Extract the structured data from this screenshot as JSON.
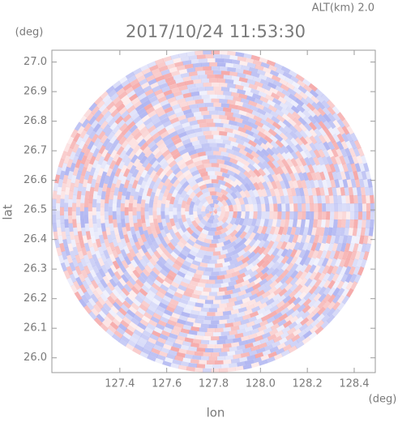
{
  "chart_data": {
    "type": "radar-image",
    "title": "2017/10/24 11:53:30",
    "annotation": "ALT(km) 2.0",
    "x_label": "lon",
    "y_label": "lat",
    "x_unit": "(deg)",
    "y_unit": "(deg)",
    "xlim": [
      127.11,
      128.49
    ],
    "ylim": [
      25.95,
      27.04
    ],
    "xticks": [
      127.4,
      127.6,
      127.8,
      {
        "value": 128.0,
        "label": "128.0"
      },
      128.2,
      128.4
    ],
    "yticks": [
      {
        "value": 26.0,
        "label": "26.0"
      },
      26.1,
      26.2,
      26.3,
      26.4,
      26.5,
      26.6,
      26.7,
      26.8,
      26.9,
      {
        "value": 27.0,
        "label": "27.0"
      }
    ],
    "colors": [
      "#f4a0a0",
      "#a8aef0"
    ]
  }
}
